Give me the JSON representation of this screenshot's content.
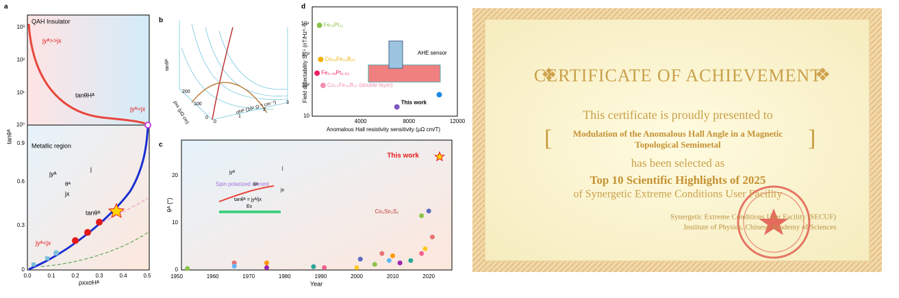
{
  "figure": {
    "panel_a": {
      "label": "a",
      "region_top": "QAH Insulator",
      "region_bottom": "Metallic region",
      "y_label": "tanθᴬ",
      "x_label": "ρxxσHᴬ",
      "curve_label": "tanθHᴬ",
      "curve_label2": "tanθᴬ",
      "note_top": "jyᴬ>>jx",
      "note_mid": "jyᴬ=jx",
      "note_bottom": "jyᴬ<jx",
      "inset_j": "j",
      "inset_jy": "jyᴬ",
      "inset_jx": "jx",
      "inset_theta": "θᴬ",
      "yticks_log": [
        "10³",
        "10²",
        "10¹",
        "10⁰"
      ],
      "yticks_lin": [
        "0.9",
        "0.6",
        "0.3",
        "0"
      ],
      "xticks": [
        "0.0",
        "0.1",
        "0.2",
        "0.3",
        "0.4",
        "0.5"
      ]
    },
    "panel_b": {
      "label": "b",
      "z_label": "tanθᴬ",
      "y_label": "ρxx (μΩ cm)",
      "x_label": "σHᴬ (10⁵ Ω⁻¹ cm⁻¹)",
      "yticks": [
        "0",
        "100",
        "200"
      ],
      "xticks": [
        "0",
        "1",
        "2",
        "3"
      ]
    },
    "panel_c": {
      "label": "c",
      "x_label": "Year",
      "y_label": "θᴬ (°)",
      "this_work": "This work",
      "co3sn2s2": "Co₃Sn₂S₂",
      "spin": "Spin polarized current",
      "formula": "tanθᴬ = jyᴬ/jx",
      "ex": "Ex",
      "jy": "jyᴬ",
      "jx": "jx",
      "j": "j",
      "theta": "θᴬ",
      "xticks": [
        "1950",
        "1960",
        "1970",
        "1980",
        "1990",
        "2000",
        "2010",
        "2020"
      ],
      "yticks": [
        "0",
        "10",
        "20"
      ],
      "points": [
        {
          "year": 1953,
          "angle": 0.3
        },
        {
          "year": 1966,
          "angle": 1.5
        },
        {
          "year": 1966,
          "angle": 0.8
        },
        {
          "year": 1975,
          "angle": 1.5
        },
        {
          "year": 1975,
          "angle": 0.5
        },
        {
          "year": 1988,
          "angle": 0.7
        },
        {
          "year": 1991,
          "angle": 0.5
        },
        {
          "year": 2000,
          "angle": 0.5
        },
        {
          "year": 2001,
          "angle": 2.3
        },
        {
          "year": 2005,
          "angle": 1.2
        },
        {
          "year": 2007,
          "angle": 3.5
        },
        {
          "year": 2009,
          "angle": 2.0
        },
        {
          "year": 2010,
          "angle": 3.0
        },
        {
          "year": 2012,
          "angle": 1.5
        },
        {
          "year": 2015,
          "angle": 2.0
        },
        {
          "year": 2018,
          "angle": 3.5
        },
        {
          "year": 2019,
          "angle": 4.5
        },
        {
          "year": 2020,
          "angle": 12.5
        },
        {
          "year": 2018,
          "angle": 11.5
        },
        {
          "year": 2021,
          "angle": 7
        },
        {
          "year": 2023,
          "angle": 24
        }
      ]
    },
    "panel_d": {
      "label": "d",
      "x_label": "Anomalous Hall resistivity sensitivity (μΩ cm/T)",
      "y_label": "Field detectability S⁰·⁵ (nT/Hz⁰·⁵)",
      "sensor": "AHE sensor",
      "xticks": [
        "4000",
        "8000",
        "12000"
      ],
      "yticks": [
        "10⁴",
        "10³",
        "10²",
        "10"
      ],
      "points": [
        {
          "name": "Fe₇₉Pt₂₁",
          "sens": 600,
          "det": 9000
        },
        {
          "name": "Co₄₀Fe₄₀B₂₀",
          "sens": 700,
          "det": 700
        },
        {
          "name": "Fe₀.₄₈Pt₀.₅₂",
          "sens": 400,
          "det": 250
        },
        {
          "name": "Co₄₀Fe₄₀B₂₀ (double layer)",
          "sens": 900,
          "det": 100
        },
        {
          "name": "This work",
          "sens": 7000,
          "det": 20
        },
        {
          "sens": 10500,
          "det": 50
        }
      ]
    }
  },
  "certificate": {
    "title": "CERTIFICATE OF ACHIEVEMENT",
    "presented": "This certificate is proudly presented to",
    "work_line1": "Modulation of the Anomalous Hall Angle in a Magnetic",
    "work_line2": "Topological Semimetal",
    "selected": "has been selected as",
    "award": "Top 10 Scientific Highlights of 2025",
    "facility": "of Synergetic Extreme Conditions User Facility",
    "issuer1": "Synergetic Extreme Conditions User Facility (SECUF)",
    "issuer2": "Institute of Physics, Chinese Academy of Sciences"
  }
}
